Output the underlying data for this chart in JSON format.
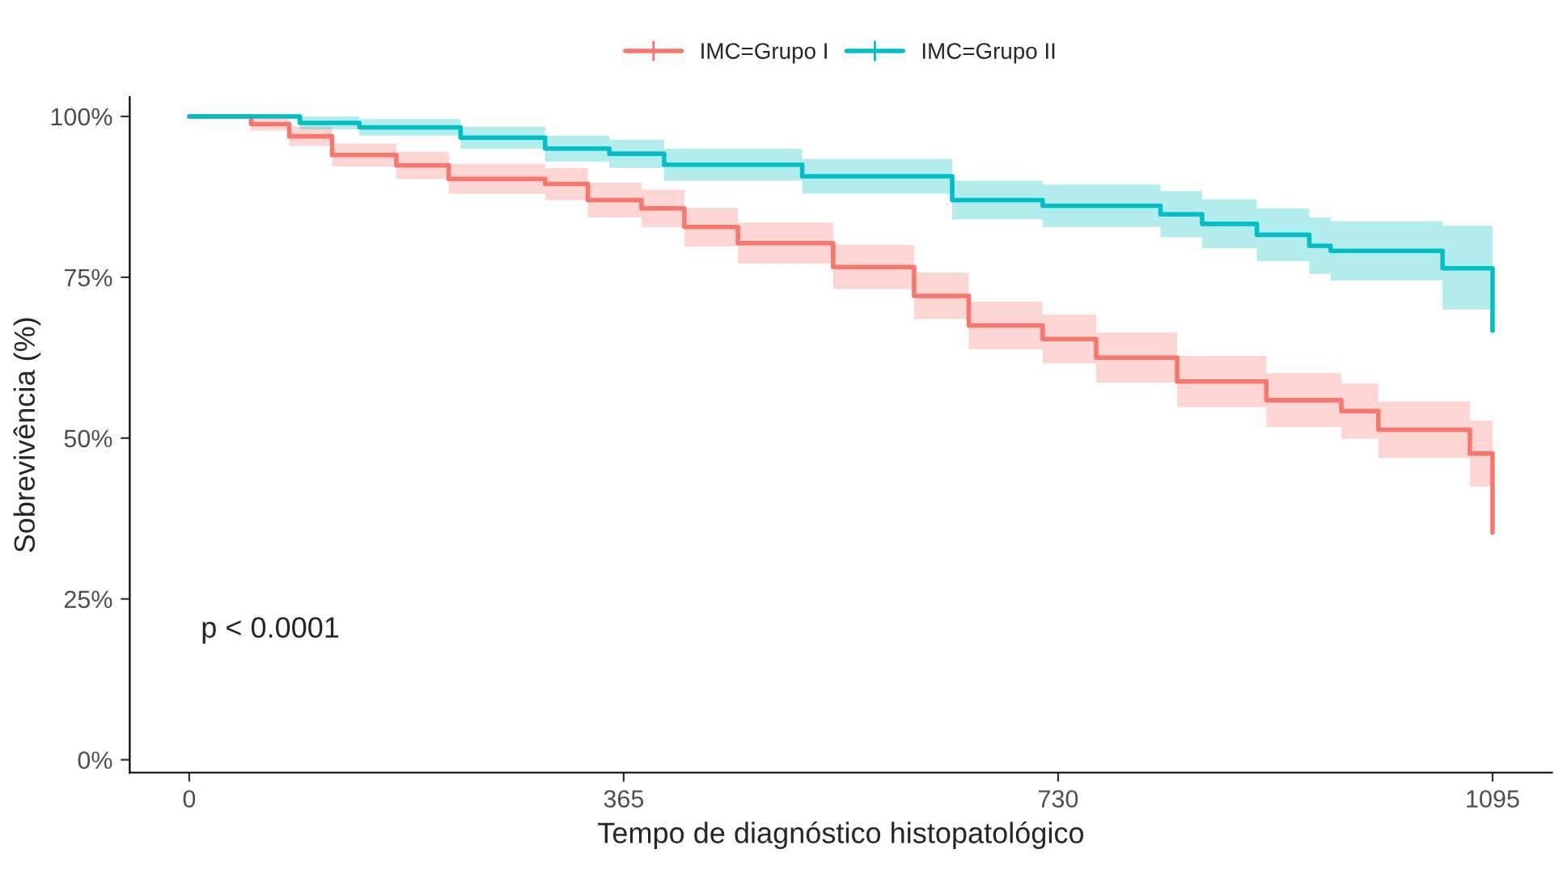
{
  "chart_data": {
    "type": "step",
    "xlabel": "Tempo de diagnóstico histopatológico",
    "ylabel": "Sobrevivência (%)",
    "xlim": [
      -50,
      1145
    ],
    "xticks": [
      0,
      365,
      730,
      1095
    ],
    "ylim": [
      -2,
      103
    ],
    "yticks": [
      {
        "value": 0,
        "label": "0%"
      },
      {
        "value": 25,
        "label": "25%"
      },
      {
        "value": 50,
        "label": "50%"
      },
      {
        "value": 75,
        "label": "75%"
      },
      {
        "value": 100,
        "label": "100%"
      }
    ],
    "grid": false,
    "legend": "top",
    "annotations": [
      "p < 0.0001"
    ],
    "series": [
      {
        "name": "IMC=Grupo I",
        "color": "#f8766d",
        "x": [
          0,
          52,
          84,
          120,
          174,
          218,
          299,
          335,
          380,
          416,
          461,
          541,
          609,
          655,
          717,
          762,
          830,
          905,
          968,
          999,
          1076,
          1095
        ],
        "values": [
          100,
          98.8,
          96.9,
          94.0,
          92.4,
          90.3,
          89.5,
          87.0,
          85.7,
          82.8,
          80.3,
          76.6,
          72.1,
          67.5,
          65.4,
          62.5,
          58.8,
          55.9,
          54.2,
          51.3,
          47.6,
          35.3
        ],
        "lower": [
          100,
          97.8,
          95.4,
          92.2,
          90.3,
          88.0,
          87.0,
          84.3,
          82.8,
          79.8,
          77.1,
          73.2,
          68.5,
          63.8,
          61.6,
          58.6,
          54.8,
          51.7,
          49.9,
          46.9,
          42.5,
          42.5
        ],
        "upper": [
          100,
          99.8,
          98.4,
          95.8,
          94.5,
          92.6,
          92.0,
          89.7,
          88.6,
          85.8,
          83.5,
          80.0,
          75.7,
          71.2,
          69.2,
          66.4,
          62.8,
          60.1,
          58.5,
          55.7,
          52.7,
          52.7
        ]
      },
      {
        "name": "IMC=Grupo II",
        "color": "#00bfc4",
        "x": [
          0,
          93,
          143,
          228,
          299,
          353,
          399,
          515,
          641,
          717,
          816,
          851,
          897,
          941,
          959,
          1053,
          1095
        ],
        "values": [
          100,
          99.0,
          98.3,
          96.7,
          95.0,
          94.2,
          92.5,
          90.7,
          87.0,
          86.1,
          84.8,
          83.3,
          81.6,
          79.9,
          79.1,
          76.4,
          66.7
        ],
        "lower": [
          100,
          98.0,
          97.0,
          95.0,
          93.0,
          92.0,
          90.0,
          88.0,
          84.0,
          82.8,
          81.2,
          79.5,
          77.5,
          75.5,
          74.5,
          70.0,
          70.0
        ],
        "upper": [
          100,
          100,
          99.6,
          98.4,
          97.0,
          96.4,
          95.0,
          93.4,
          90.0,
          89.4,
          88.4,
          87.1,
          85.7,
          84.3,
          83.7,
          83.0,
          83.0
        ]
      }
    ]
  }
}
